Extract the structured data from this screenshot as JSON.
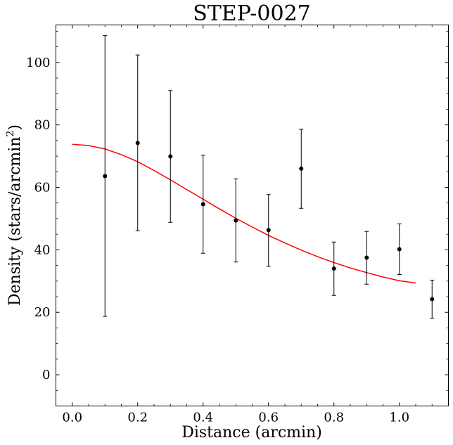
{
  "chart_data": {
    "type": "scatter",
    "title": "STEP-0027",
    "xlabel": "Distance (arcmin)",
    "ylabel": "Density (stars/arcmin²)",
    "ylabel_main": "Density (stars/arcmin",
    "ylabel_sup": "2",
    "ylabel_close": ")",
    "xlim": [
      -0.05,
      1.15
    ],
    "ylim": [
      -10,
      112
    ],
    "xticks": [
      0.0,
      0.2,
      0.4,
      0.6,
      0.8,
      1.0
    ],
    "xtick_labels": [
      "0.0",
      "0.2",
      "0.4",
      "0.6",
      "0.8",
      "1.0"
    ],
    "yticks": [
      0,
      20,
      40,
      60,
      80,
      100
    ],
    "ytick_labels": [
      "0",
      "20",
      "40",
      "60",
      "80",
      "100"
    ],
    "grid": false,
    "series": [
      {
        "type": "errorbar",
        "color": "#000000",
        "points": [
          {
            "x": 0.1,
            "y": 63.6,
            "ylo": 18.7,
            "yhi": 108.6
          },
          {
            "x": 0.2,
            "y": 74.2,
            "ylo": 46.1,
            "yhi": 102.4
          },
          {
            "x": 0.3,
            "y": 69.9,
            "ylo": 48.8,
            "yhi": 91.0
          },
          {
            "x": 0.4,
            "y": 54.6,
            "ylo": 38.9,
            "yhi": 70.3
          },
          {
            "x": 0.5,
            "y": 49.4,
            "ylo": 36.1,
            "yhi": 62.7
          },
          {
            "x": 0.6,
            "y": 46.3,
            "ylo": 34.7,
            "yhi": 57.7
          },
          {
            "x": 0.7,
            "y": 66.0,
            "ylo": 53.3,
            "yhi": 78.6
          },
          {
            "x": 0.8,
            "y": 34.0,
            "ylo": 25.4,
            "yhi": 42.5
          },
          {
            "x": 0.9,
            "y": 37.5,
            "ylo": 29.0,
            "yhi": 45.9
          },
          {
            "x": 1.0,
            "y": 40.2,
            "ylo": 32.1,
            "yhi": 48.3
          },
          {
            "x": 1.1,
            "y": 24.2,
            "ylo": 18.1,
            "yhi": 30.3
          }
        ]
      },
      {
        "type": "line",
        "color": "#ff0000",
        "x": [
          0.0,
          0.05,
          0.1,
          0.15,
          0.2,
          0.25,
          0.3,
          0.35,
          0.4,
          0.45,
          0.5,
          0.55,
          0.6,
          0.65,
          0.7,
          0.75,
          0.8,
          0.85,
          0.9,
          0.95,
          1.0,
          1.05
        ],
        "y": [
          73.8,
          73.4,
          72.3,
          70.5,
          68.2,
          65.4,
          62.4,
          59.3,
          56.2,
          53.1,
          50.1,
          47.3,
          44.6,
          42.2,
          39.9,
          37.8,
          35.9,
          34.2,
          32.7,
          31.3,
          30.1,
          29.4
        ]
      }
    ]
  }
}
